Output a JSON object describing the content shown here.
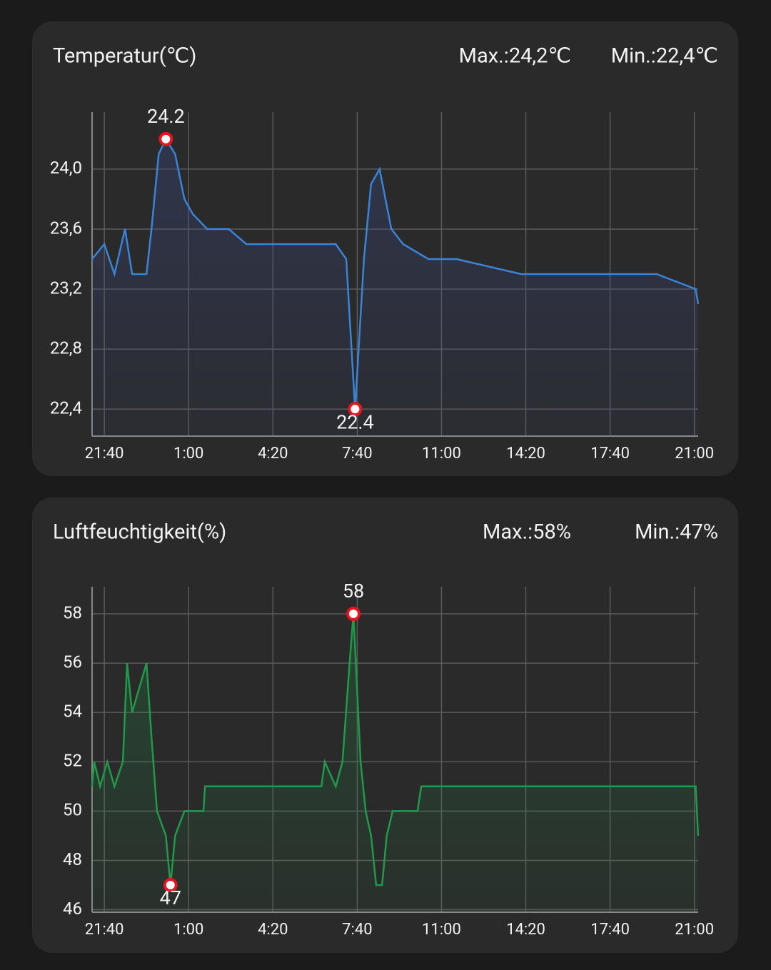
{
  "chart_data": [
    {
      "type": "line",
      "title": "Temperatur(℃)",
      "max_text": "Max.:24,2℃",
      "min_text": "Min.:22,4℃",
      "x": [
        "21:11",
        "21:40",
        "22:04",
        "22:29",
        "22:46",
        "23:20",
        "23:32",
        "23:49",
        "00:06",
        "00:28",
        "00:50",
        "01:10",
        "01:44",
        "02:35",
        "03:17",
        "04:50",
        "06:49",
        "07:14",
        "07:35",
        "07:56",
        "08:13",
        "08:33",
        "09:01",
        "09:29",
        "10:29",
        "11:36",
        "14:09",
        "18:06",
        "19:30",
        "21:03",
        "21:09"
      ],
      "series": [
        {
          "color": "#3a84d8",
          "values": [
            23.4,
            23.5,
            23.3,
            23.6,
            23.3,
            23.3,
            23.6,
            24.1,
            24.2,
            24.1,
            23.8,
            23.7,
            23.6,
            23.6,
            23.5,
            23.5,
            23.5,
            23.4,
            22.4,
            23.4,
            23.9,
            24.0,
            23.6,
            23.5,
            23.4,
            23.4,
            23.3,
            23.3,
            23.3,
            23.2,
            23.1
          ]
        }
      ],
      "markers": [
        {
          "x": "00:06",
          "value": 24.2,
          "position": "top"
        },
        {
          "x": "07:35",
          "value": 22.4,
          "position": "bottom"
        }
      ],
      "xlim": [
        "21:11",
        "21:09"
      ],
      "xticks": [
        "21:40",
        "1:00",
        "4:20",
        "7:40",
        "11:00",
        "14:20",
        "17:40",
        "21:00"
      ],
      "ylim": [
        22.22,
        24.38
      ],
      "yticks": [
        {
          "value": 22.4,
          "label": "22,4"
        },
        {
          "value": 22.8,
          "label": "22,8"
        },
        {
          "value": 23.2,
          "label": "23,2"
        },
        {
          "value": 23.6,
          "label": "23,6"
        },
        {
          "value": 24.0,
          "label": "24,0"
        }
      ],
      "grid": true
    },
    {
      "type": "line",
      "title": "Luftfeuchtigkeit(%)",
      "max_text": "Max.:58%",
      "min_text": "Min.:47%",
      "x": [
        "21:11",
        "21:16",
        "21:30",
        "21:47",
        "22:04",
        "22:24",
        "22:34",
        "22:46",
        "23:03",
        "23:20",
        "23:32",
        "23:45",
        "00:06",
        "00:17",
        "00:28",
        "00:50",
        "01:35",
        "01:39",
        "06:15",
        "06:23",
        "06:49",
        "07:05",
        "07:22",
        "07:31",
        "07:48",
        "08:00",
        "08:13",
        "08:25",
        "08:39",
        "08:50",
        "09:04",
        "10:03",
        "10:12",
        "21:03",
        "21:09"
      ],
      "series": [
        {
          "color": "#1f9a4a",
          "values": [
            51,
            52,
            51,
            52,
            51,
            52,
            56,
            54,
            55,
            56,
            53,
            50,
            49,
            47,
            49,
            50,
            50,
            51,
            51,
            52,
            51,
            52,
            56,
            58,
            52,
            50,
            49,
            47,
            47,
            49,
            50,
            50,
            51,
            51,
            49
          ]
        }
      ],
      "markers": [
        {
          "x": "07:31",
          "value": 58,
          "position": "top"
        },
        {
          "x": "00:17",
          "value": 47,
          "position": "bottom"
        }
      ],
      "xlim": [
        "21:11",
        "21:09"
      ],
      "xticks": [
        "21:40",
        "1:00",
        "4:20",
        "7:40",
        "11:00",
        "14:20",
        "17:40",
        "21:00"
      ],
      "ylim": [
        45.9,
        59.1
      ],
      "yticks": [
        46,
        48,
        50,
        52,
        54,
        56,
        58
      ],
      "grid": true
    }
  ]
}
